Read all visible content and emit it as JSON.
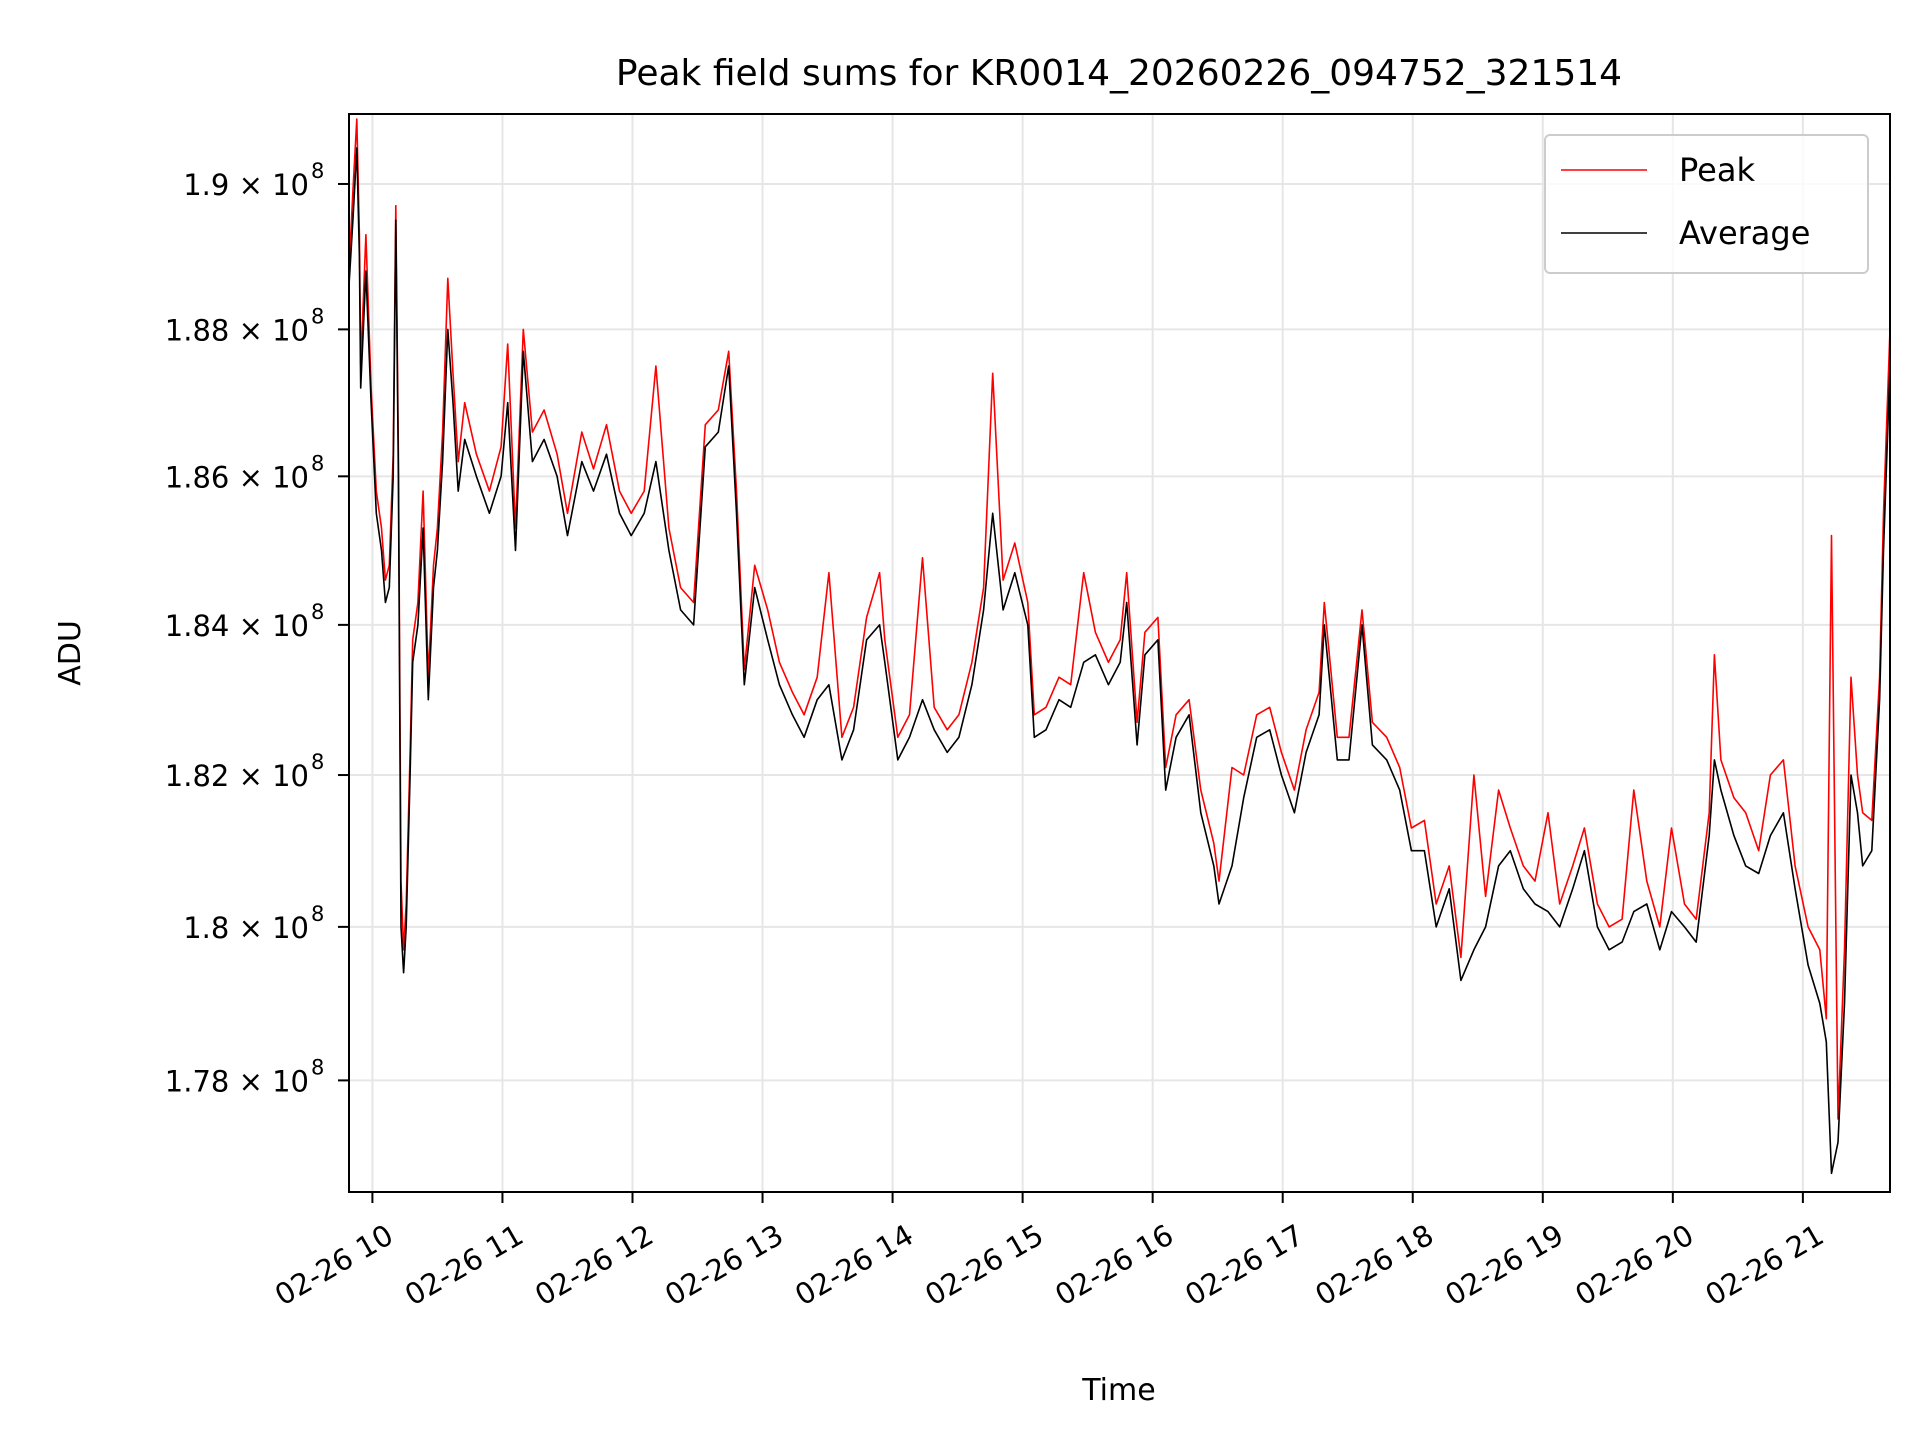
{
  "chart_data": {
    "type": "line",
    "title": "Peak field sums for KR0014_20260226_094752_321514",
    "xlabel": "Time",
    "ylabel": "ADU",
    "y_units_note": "values in units of 1e8 ADU",
    "y_scale": "log",
    "xlim": [
      9.82,
      21.67
    ],
    "ylim": [
      1.7656,
      1.9097
    ],
    "grid": true,
    "legend_position": "top-right",
    "xticks": [
      {
        "value": 10,
        "label": "02-26 10"
      },
      {
        "value": 11,
        "label": "02-26 11"
      },
      {
        "value": 12,
        "label": "02-26 12"
      },
      {
        "value": 13,
        "label": "02-26 13"
      },
      {
        "value": 14,
        "label": "02-26 14"
      },
      {
        "value": 15,
        "label": "02-26 15"
      },
      {
        "value": 16,
        "label": "02-26 16"
      },
      {
        "value": 17,
        "label": "02-26 17"
      },
      {
        "value": 18,
        "label": "02-26 18"
      },
      {
        "value": 19,
        "label": "02-26 19"
      },
      {
        "value": 20,
        "label": "02-26 20"
      },
      {
        "value": 21,
        "label": "02-26 21"
      }
    ],
    "yticks": [
      {
        "value": 1.9,
        "mantissa": "1.9 × 10",
        "exp": "8"
      },
      {
        "value": 1.88,
        "mantissa": "1.88 × 10",
        "exp": "8"
      },
      {
        "value": 1.86,
        "mantissa": "1.86 × 10",
        "exp": "8"
      },
      {
        "value": 1.84,
        "mantissa": "1.84 × 10",
        "exp": "8"
      },
      {
        "value": 1.82,
        "mantissa": "1.82 × 10",
        "exp": "8"
      },
      {
        "value": 1.8,
        "mantissa": "1.8 × 10",
        "exp": "8"
      },
      {
        "value": 1.78,
        "mantissa": "1.78 × 10",
        "exp": "8"
      }
    ],
    "x": [
      9.82,
      9.85,
      9.88,
      9.9,
      9.91,
      9.95,
      9.99,
      10.03,
      10.07,
      10.1,
      10.13,
      10.16,
      10.18,
      10.2,
      10.22,
      10.24,
      10.26,
      10.29,
      10.31,
      10.35,
      10.39,
      10.43,
      10.47,
      10.5,
      10.54,
      10.58,
      10.62,
      10.66,
      10.71,
      10.8,
      10.9,
      10.99,
      11.04,
      11.1,
      11.16,
      11.23,
      11.32,
      11.42,
      11.5,
      11.61,
      11.7,
      11.8,
      11.9,
      11.99,
      12.09,
      12.18,
      12.28,
      12.37,
      12.47,
      12.56,
      12.66,
      12.74,
      12.8,
      12.86,
      12.94,
      13.04,
      13.13,
      13.23,
      13.32,
      13.42,
      13.51,
      13.61,
      13.7,
      13.8,
      13.9,
      13.94,
      14.04,
      14.13,
      14.23,
      14.32,
      14.42,
      14.51,
      14.61,
      14.7,
      14.77,
      14.85,
      14.94,
      15.04,
      15.09,
      15.18,
      15.28,
      15.37,
      15.47,
      15.56,
      15.66,
      15.75,
      15.8,
      15.88,
      15.94,
      16.04,
      16.1,
      16.18,
      16.28,
      16.37,
      16.47,
      16.51,
      16.61,
      16.7,
      16.8,
      16.9,
      16.99,
      17.09,
      17.18,
      17.28,
      17.32,
      17.42,
      17.51,
      17.61,
      17.69,
      17.8,
      17.9,
      17.99,
      18.09,
      18.18,
      18.28,
      18.37,
      18.47,
      18.56,
      18.66,
      18.75,
      18.85,
      18.94,
      19.04,
      19.13,
      19.23,
      19.32,
      19.42,
      19.51,
      19.61,
      19.7,
      19.8,
      19.9,
      19.99,
      20.09,
      20.18,
      20.28,
      20.32,
      20.37,
      20.47,
      20.56,
      20.66,
      20.75,
      20.85,
      20.94,
      21.04,
      21.13,
      21.18,
      21.22,
      21.27,
      21.32,
      21.37,
      21.42,
      21.46,
      21.53,
      21.59,
      21.62,
      21.67
    ],
    "series": [
      {
        "name": "Peak",
        "color": "#ff0000",
        "values": [
          1.888,
          1.899,
          1.909,
          1.893,
          1.875,
          1.893,
          1.872,
          1.858,
          1.853,
          1.846,
          1.848,
          1.863,
          1.897,
          1.863,
          1.806,
          1.797,
          1.803,
          1.823,
          1.838,
          1.843,
          1.858,
          1.833,
          1.848,
          1.853,
          1.866,
          1.887,
          1.874,
          1.862,
          1.87,
          1.863,
          1.858,
          1.864,
          1.878,
          1.853,
          1.88,
          1.866,
          1.869,
          1.863,
          1.855,
          1.866,
          1.861,
          1.867,
          1.858,
          1.855,
          1.858,
          1.875,
          1.853,
          1.845,
          1.843,
          1.867,
          1.869,
          1.877,
          1.858,
          1.834,
          1.848,
          1.842,
          1.835,
          1.831,
          1.828,
          1.833,
          1.847,
          1.825,
          1.829,
          1.841,
          1.847,
          1.838,
          1.825,
          1.828,
          1.849,
          1.829,
          1.826,
          1.828,
          1.835,
          1.845,
          1.874,
          1.846,
          1.851,
          1.843,
          1.828,
          1.829,
          1.833,
          1.832,
          1.847,
          1.839,
          1.835,
          1.838,
          1.847,
          1.827,
          1.839,
          1.841,
          1.821,
          1.828,
          1.83,
          1.818,
          1.811,
          1.806,
          1.821,
          1.82,
          1.828,
          1.829,
          1.823,
          1.818,
          1.826,
          1.831,
          1.843,
          1.825,
          1.825,
          1.842,
          1.827,
          1.825,
          1.821,
          1.813,
          1.814,
          1.803,
          1.808,
          1.796,
          1.82,
          1.804,
          1.818,
          1.813,
          1.808,
          1.806,
          1.815,
          1.803,
          1.808,
          1.813,
          1.803,
          1.8,
          1.801,
          1.818,
          1.806,
          1.8,
          1.813,
          1.803,
          1.801,
          1.815,
          1.836,
          1.822,
          1.817,
          1.815,
          1.81,
          1.82,
          1.822,
          1.808,
          1.8,
          1.797,
          1.788,
          1.852,
          1.775,
          1.797,
          1.833,
          1.82,
          1.815,
          1.814,
          1.833,
          1.855,
          1.88
        ]
      },
      {
        "name": "Average",
        "color": "#000000",
        "values": [
          1.886,
          1.895,
          1.905,
          1.89,
          1.872,
          1.888,
          1.87,
          1.855,
          1.85,
          1.843,
          1.845,
          1.86,
          1.895,
          1.86,
          1.8,
          1.794,
          1.8,
          1.82,
          1.835,
          1.84,
          1.853,
          1.83,
          1.845,
          1.85,
          1.862,
          1.88,
          1.87,
          1.858,
          1.865,
          1.86,
          1.855,
          1.86,
          1.87,
          1.85,
          1.877,
          1.862,
          1.865,
          1.86,
          1.852,
          1.862,
          1.858,
          1.863,
          1.855,
          1.852,
          1.855,
          1.862,
          1.85,
          1.842,
          1.84,
          1.864,
          1.866,
          1.875,
          1.855,
          1.832,
          1.845,
          1.838,
          1.832,
          1.828,
          1.825,
          1.83,
          1.832,
          1.822,
          1.826,
          1.838,
          1.84,
          1.835,
          1.822,
          1.825,
          1.83,
          1.826,
          1.823,
          1.825,
          1.832,
          1.842,
          1.855,
          1.842,
          1.847,
          1.84,
          1.825,
          1.826,
          1.83,
          1.829,
          1.835,
          1.836,
          1.832,
          1.835,
          1.843,
          1.824,
          1.836,
          1.838,
          1.818,
          1.825,
          1.828,
          1.815,
          1.808,
          1.803,
          1.808,
          1.817,
          1.825,
          1.826,
          1.82,
          1.815,
          1.823,
          1.828,
          1.84,
          1.822,
          1.822,
          1.84,
          1.824,
          1.822,
          1.818,
          1.81,
          1.81,
          1.8,
          1.805,
          1.793,
          1.797,
          1.8,
          1.808,
          1.81,
          1.805,
          1.803,
          1.802,
          1.8,
          1.805,
          1.81,
          1.8,
          1.797,
          1.798,
          1.802,
          1.803,
          1.797,
          1.802,
          1.8,
          1.798,
          1.812,
          1.822,
          1.818,
          1.812,
          1.808,
          1.807,
          1.812,
          1.815,
          1.805,
          1.795,
          1.79,
          1.785,
          1.768,
          1.772,
          1.79,
          1.82,
          1.815,
          1.808,
          1.81,
          1.83,
          1.85,
          1.875
        ]
      }
    ]
  }
}
